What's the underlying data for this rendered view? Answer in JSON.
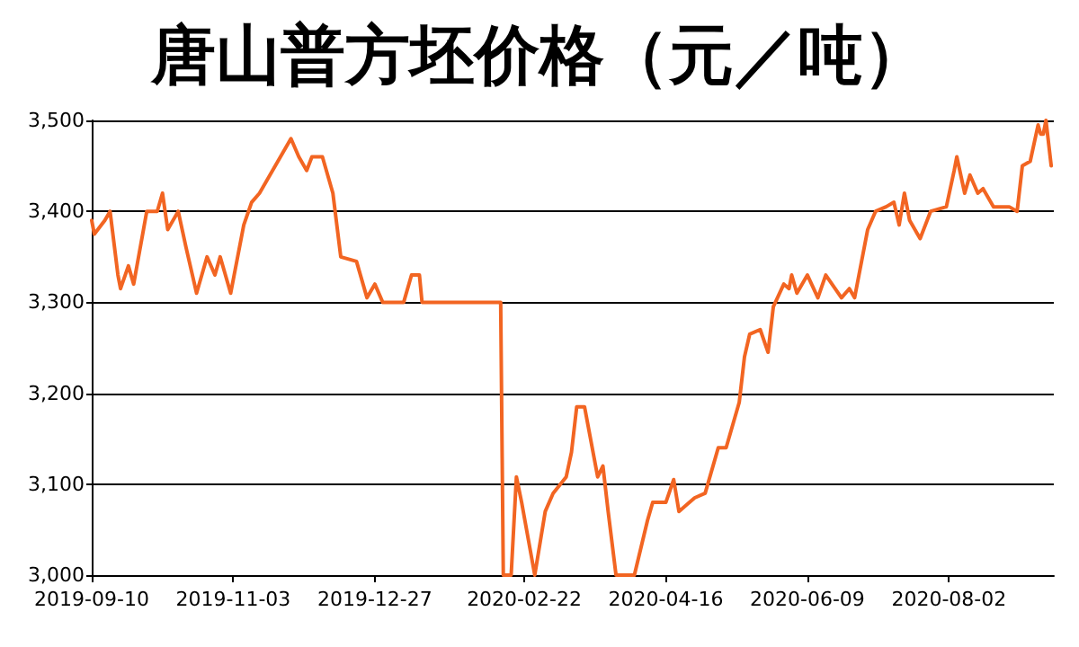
{
  "chart_data": {
    "type": "line",
    "title": "唐山普方坯价格（元／吨）",
    "x": [
      "2019-09-10",
      "2019-09-11",
      "2019-09-15",
      "2019-09-17",
      "2019-09-20",
      "2019-09-21",
      "2019-09-24",
      "2019-09-26",
      "2019-10-01",
      "2019-10-05",
      "2019-10-07",
      "2019-10-09",
      "2019-10-13",
      "2019-10-16",
      "2019-10-20",
      "2019-10-24",
      "2019-10-27",
      "2019-10-29",
      "2019-11-02",
      "2019-11-07",
      "2019-11-10",
      "2019-11-13",
      "2019-11-25",
      "2019-11-28",
      "2019-12-01",
      "2019-12-03",
      "2019-12-07",
      "2019-12-11",
      "2019-12-14",
      "2019-12-20",
      "2019-12-24",
      "2019-12-27",
      "2019-12-30",
      "2020-01-07",
      "2020-01-10",
      "2020-01-13",
      "2020-01-14",
      "2020-02-13",
      "2020-02-14",
      "2020-02-17",
      "2020-02-19",
      "2020-02-21",
      "2020-02-26",
      "2020-03-01",
      "2020-03-04",
      "2020-03-09",
      "2020-03-11",
      "2020-03-13",
      "2020-03-16",
      "2020-03-21",
      "2020-03-23",
      "2020-03-25",
      "2020-03-28",
      "2020-04-04",
      "2020-04-09",
      "2020-04-11",
      "2020-04-16",
      "2020-04-19",
      "2020-04-21",
      "2020-04-27",
      "2020-05-01",
      "2020-05-06",
      "2020-05-09",
      "2020-05-14",
      "2020-05-16",
      "2020-05-18",
      "2020-05-22",
      "2020-05-25",
      "2020-05-27",
      "2020-05-31",
      "2020-06-02",
      "2020-06-03",
      "2020-06-05",
      "2020-06-09",
      "2020-06-13",
      "2020-06-16",
      "2020-06-22",
      "2020-06-25",
      "2020-06-27",
      "2020-07-02",
      "2020-07-05",
      "2020-07-09",
      "2020-07-12",
      "2020-07-14",
      "2020-07-16",
      "2020-07-18",
      "2020-07-22",
      "2020-07-26",
      "2020-08-01",
      "2020-08-04",
      "2020-08-05",
      "2020-08-08",
      "2020-08-10",
      "2020-08-13",
      "2020-08-15",
      "2020-08-19",
      "2020-08-25",
      "2020-08-28",
      "2020-08-30",
      "2020-09-02",
      "2020-09-05",
      "2020-09-06",
      "2020-09-07",
      "2020-09-08",
      "2020-09-10"
    ],
    "series": [
      {
        "color": "#f26522",
        "values": [
          3390,
          3375,
          3390,
          3400,
          3330,
          3315,
          3340,
          3320,
          3400,
          3400,
          3420,
          3380,
          3400,
          3360,
          3310,
          3350,
          3330,
          3350,
          3310,
          3385,
          3410,
          3420,
          3480,
          3460,
          3445,
          3460,
          3460,
          3420,
          3350,
          3345,
          3305,
          3320,
          3300,
          3300,
          3330,
          3330,
          3300,
          3300,
          3000,
          3000,
          3108,
          3080,
          3000,
          3070,
          3090,
          3108,
          3135,
          3185,
          3185,
          3108,
          3120,
          3070,
          3000,
          3000,
          3060,
          3080,
          3080,
          3105,
          3070,
          3085,
          3090,
          3140,
          3140,
          3190,
          3240,
          3265,
          3270,
          3245,
          3295,
          3320,
          3315,
          3330,
          3310,
          3330,
          3305,
          3330,
          3305,
          3315,
          3305,
          3380,
          3400,
          3405,
          3410,
          3385,
          3420,
          3390,
          3370,
          3400,
          3405,
          3445,
          3460,
          3420,
          3440,
          3420,
          3425,
          3405,
          3405,
          3400,
          3450,
          3455,
          3495,
          3485,
          3485,
          3500,
          3450
        ]
      }
    ],
    "xlim": [
      "2019-09-10",
      "2020-09-11"
    ],
    "xticks": [
      "2019-09-10",
      "2019-11-03",
      "2019-12-27",
      "2020-02-22",
      "2020-04-16",
      "2020-06-09",
      "2020-08-02"
    ],
    "ylim": [
      3000,
      3500
    ],
    "yticks": [
      {
        "value": 3000,
        "label": "3,000"
      },
      {
        "value": 3100,
        "label": "3,100"
      },
      {
        "value": 3200,
        "label": "3,200"
      },
      {
        "value": 3300,
        "label": "3,300"
      },
      {
        "value": 3400,
        "label": "3,400"
      },
      {
        "value": 3500,
        "label": "3,500"
      }
    ],
    "grid": "y",
    "marker": "none",
    "line_style": "solid"
  }
}
